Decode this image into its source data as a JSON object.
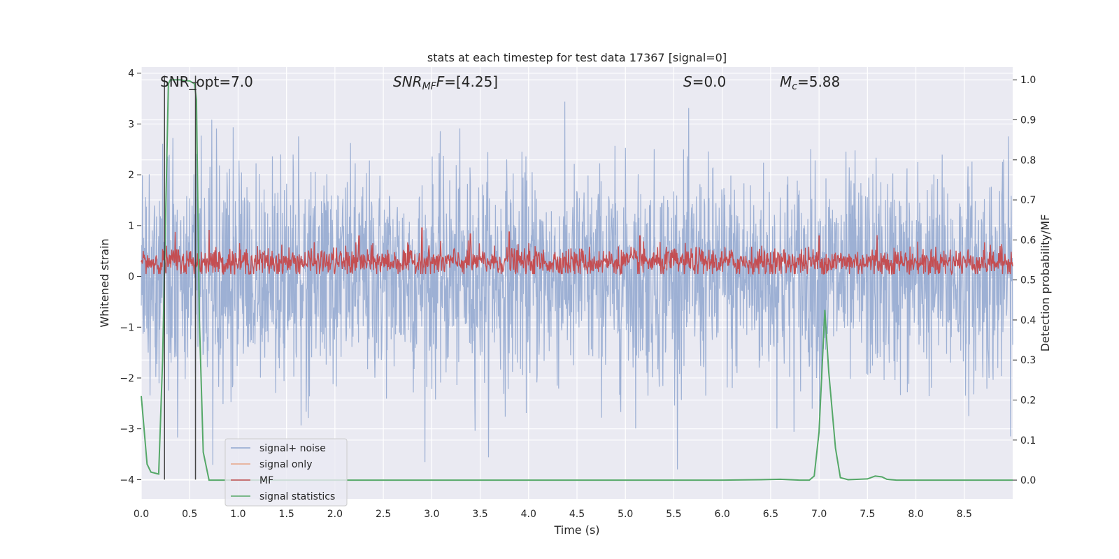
{
  "chart_data": {
    "type": "line",
    "title": "stats at each timestep for test data 17367 [signal=0]",
    "xlabel": "Time (s)",
    "ylabel_left": "Whitened strain",
    "ylabel_right": "Detection probability/MF",
    "xlim": [
      0.0,
      9.0
    ],
    "ylim_left": [
      -4.38,
      4.12
    ],
    "ylim_right": [
      -0.047,
      1.0318
    ],
    "x_ticks": [
      0.0,
      0.5,
      1.0,
      1.5,
      2.0,
      2.5,
      3.0,
      3.5,
      4.0,
      4.5,
      5.0,
      5.5,
      6.0,
      6.5,
      7.0,
      7.5,
      8.0,
      8.5
    ],
    "x_tick_labels": [
      "0.0",
      "0.5",
      "1.0",
      "1.5",
      "2.0",
      "2.5",
      "3.0",
      "3.5",
      "4.0",
      "4.5",
      "5.0",
      "5.5",
      "6.0",
      "6.5",
      "7.0",
      "7.5",
      "8.0",
      "8.5"
    ],
    "y_left_ticks": [
      4,
      3,
      2,
      1,
      0,
      -1,
      -2,
      -3,
      -4
    ],
    "y_left_tick_labels": [
      "4",
      "3",
      "2",
      "1",
      "0",
      "−1",
      "−2",
      "−3",
      "−4"
    ],
    "y_right_ticks": [
      1.0,
      0.9,
      0.8,
      0.7,
      0.6,
      0.5,
      0.4,
      0.3,
      0.2,
      0.1,
      0.0
    ],
    "y_right_tick_labels": [
      "1.0",
      "0.9",
      "0.8",
      "0.7",
      "0.6",
      "0.5",
      "0.4",
      "0.3",
      "0.2",
      "0.1",
      "0.0"
    ],
    "annotations": {
      "snr_opt": "SNR_opt=7.0",
      "snr_mf_base": "SNR",
      "snr_mf_sub": "MF",
      "snr_mf_value": "=[4.25]",
      "s_base": "S",
      "s_value": "=0.0",
      "mc_base": "M",
      "mc_sub": "c",
      "mc_value": "=5.88"
    },
    "markers": {
      "vertical_lines_x": [
        0.24,
        0.56
      ],
      "vertical_line_ylim_left": [
        -4.0,
        3.95
      ],
      "horizontal_segment": {
        "x": [
          0.52,
          0.58
        ],
        "y_right": 0.993
      }
    },
    "series": [
      {
        "name": "signal+ noise",
        "axis": "left",
        "color": "#8fa6cf",
        "description_stats": {
          "mean": 0.0,
          "std": 1.0,
          "typical_max": 3.9,
          "typical_min": -3.8
        }
      },
      {
        "name": "signal only",
        "axis": "left",
        "color": "#e8a487",
        "values": []
      },
      {
        "name": "MF",
        "axis": "right",
        "color": "#c44e52",
        "description_stats": {
          "mean": 0.545,
          "typical_max": 0.6,
          "typical_min": 0.515,
          "spikes": [
            [
              0.35,
              0.62
            ],
            [
              0.7,
              0.625
            ],
            [
              2.25,
              0.61
            ],
            [
              2.9,
              0.63
            ],
            [
              3.4,
              0.615
            ],
            [
              3.8,
              0.62
            ],
            [
              5.15,
              0.61
            ],
            [
              7.0,
              0.61
            ],
            [
              7.6,
              0.612
            ]
          ]
        }
      },
      {
        "name": "signal statistics",
        "axis": "right",
        "color": "#55a868",
        "x": [
          0.0,
          0.06,
          0.1,
          0.18,
          0.22,
          0.28,
          0.3,
          0.34,
          0.4,
          0.45,
          0.5,
          0.55,
          0.57,
          0.6,
          0.64,
          0.7,
          1.0,
          2.0,
          3.0,
          4.0,
          5.0,
          6.0,
          6.4,
          6.6,
          6.8,
          6.9,
          6.95,
          7.0,
          7.06,
          7.1,
          7.17,
          7.22,
          7.3,
          7.5,
          7.58,
          7.65,
          7.7,
          7.8,
          8.0,
          9.0
        ],
        "y": [
          0.21,
          0.04,
          0.02,
          0.015,
          0.3,
          0.99,
          1.0,
          1.0,
          1.0,
          0.998,
          0.997,
          0.99,
          0.95,
          0.4,
          0.07,
          0.0,
          0.0,
          0.0,
          0.0,
          0.0,
          0.0,
          0.0,
          0.001,
          0.002,
          0.0,
          0.0,
          0.01,
          0.12,
          0.425,
          0.27,
          0.08,
          0.006,
          0.001,
          0.003,
          0.01,
          0.008,
          0.002,
          0.0,
          0.0,
          0.0
        ]
      }
    ],
    "legend": {
      "placement": "lower-left",
      "entries": [
        "signal+ noise",
        "signal only",
        "MF",
        "signal statistics"
      ]
    },
    "grid": true
  }
}
